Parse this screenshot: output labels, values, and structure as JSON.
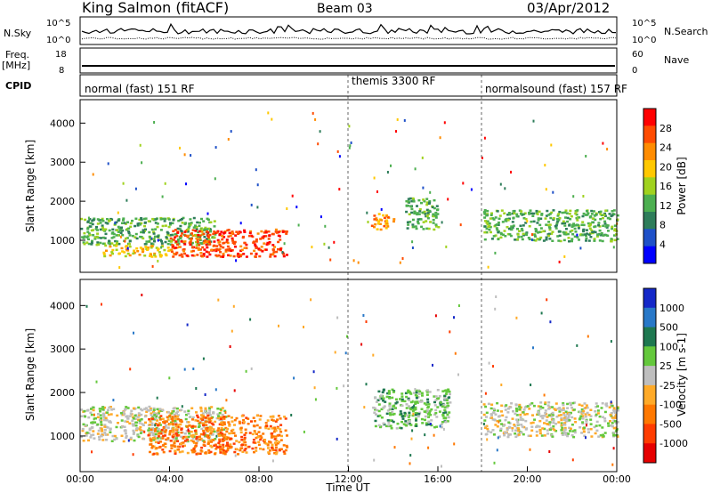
{
  "header": {
    "station": "King Salmon (fitACF)",
    "beam": "Beam 03",
    "date": "03/Apr/2012"
  },
  "sky_panel": {
    "left_label": "N.Sky",
    "right_label": "N.Search",
    "left_ticks": [
      "10^5",
      "10^0"
    ],
    "right_ticks": [
      "10^5",
      "10^0"
    ]
  },
  "freq_panel": {
    "left_label_top": "Freq.",
    "left_label_bottom": "[MHz]",
    "right_label": "Nave",
    "left_ticks": [
      "18",
      "8"
    ],
    "right_ticks": [
      "60",
      "0"
    ]
  },
  "cpid_panel": {
    "label": "CPID",
    "segments": [
      {
        "text": "normal (fast) 151 RF",
        "start_hour": 0
      },
      {
        "text": "themis 3300 RF",
        "start_hour": 12
      },
      {
        "text": "normalsound (fast) 157 RF",
        "start_hour": 18
      }
    ]
  },
  "colors": {
    "power": [
      "#0000ff",
      "#1e50c8",
      "#2e7d5a",
      "#4caf50",
      "#a0d21e",
      "#ffc800",
      "#ff8c00",
      "#ff4b00",
      "#ff0000"
    ],
    "velocity": [
      "#1428c8",
      "#2878c8",
      "#1e7850",
      "#64c83c",
      "#bebebe",
      "#ffaa28",
      "#ff7800",
      "#ff3c00",
      "#e60000"
    ],
    "ground_scatter": "#bebebe"
  },
  "chart_data": [
    {
      "type": "heatmap",
      "panel": "power",
      "ylabel": "Slant Range [km]",
      "ylim": [
        180,
        4600
      ],
      "yticks": [
        1000,
        2000,
        3000,
        4000
      ],
      "xlim": [
        0,
        24
      ],
      "colorbar": {
        "label": "Power [dB]",
        "ticks": [
          "4",
          "8",
          "12",
          "16",
          "20",
          "24",
          "28"
        ]
      },
      "regions": [
        {
          "x": [
            0.0,
            6.0
          ],
          "range_km": [
            900,
            1600
          ],
          "level": 3
        },
        {
          "x": [
            1.0,
            4.0
          ],
          "range_km": [
            600,
            900
          ],
          "level": 5
        },
        {
          "x": [
            4.0,
            9.2
          ],
          "range_km": [
            600,
            1300
          ],
          "level": 7
        },
        {
          "x": [
            13.0,
            14.0
          ],
          "range_km": [
            1300,
            1700
          ],
          "level": 6
        },
        {
          "x": [
            14.5,
            16.0
          ],
          "range_km": [
            1300,
            2100
          ],
          "level": 3
        },
        {
          "x": [
            18.0,
            24.0
          ],
          "range_km": [
            1000,
            1800
          ],
          "level": 3
        }
      ]
    },
    {
      "type": "heatmap",
      "panel": "velocity",
      "ylabel": "Slant Range [km]",
      "xlabel": "Time UT",
      "ylim": [
        180,
        4600
      ],
      "yticks": [
        1000,
        2000,
        3000,
        4000
      ],
      "xlim": [
        0,
        24
      ],
      "xticks": [
        "00:00",
        "04:00",
        "08:00",
        "12:00",
        "16:00",
        "20:00",
        "00:00"
      ],
      "colorbar": {
        "label": "Velocity [m s-1]",
        "ticks": [
          "1000",
          "500",
          "100",
          "25",
          "-25",
          "-100",
          "-500",
          "-1000"
        ]
      },
      "regions": [
        {
          "x": [
            0.0,
            6.5
          ],
          "range_km": [
            900,
            1700
          ],
          "level": 4
        },
        {
          "x": [
            3.0,
            9.2
          ],
          "range_km": [
            600,
            1500
          ],
          "level": 6
        },
        {
          "x": [
            13.0,
            16.5
          ],
          "range_km": [
            1200,
            2100
          ],
          "level": 3
        },
        {
          "x": [
            18.0,
            24.0
          ],
          "range_km": [
            1000,
            1800
          ],
          "level": 4
        }
      ]
    }
  ]
}
